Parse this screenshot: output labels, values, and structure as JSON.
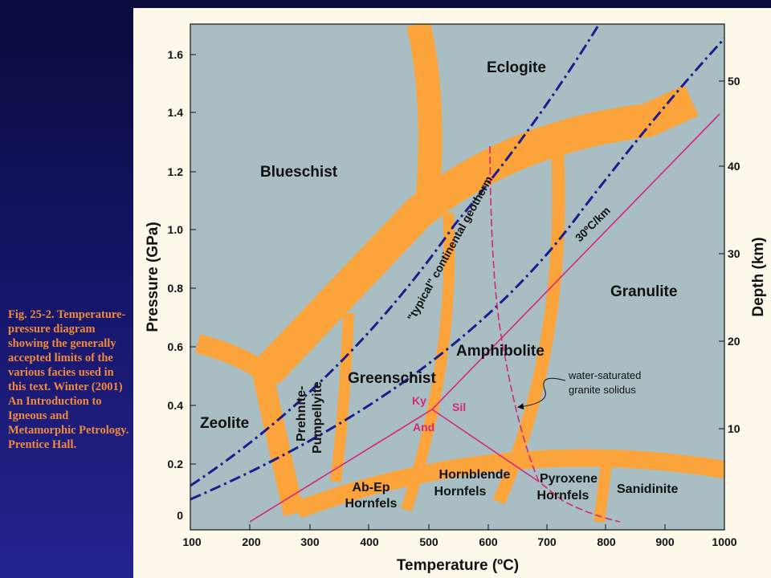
{
  "caption": "Fig. 25-2. Temperature-pressure diagram showing the generally accepted limits of the various facies used in this text. Winter (2001) An Introduction to Igneous and Metamorphic Petrology. Prentice Hall.",
  "colors": {
    "field": "#a8bec3",
    "band": "#fca43c",
    "geotherm": "#1c1c8c",
    "magenta": "#d4287a",
    "background": "#101060",
    "panel": "#fdf8ea",
    "caption": "#f08a3c"
  },
  "axes": {
    "x_label": "Temperature (ºC)",
    "y_label": "Pressure (GPa)",
    "y2_label": "Depth (km)",
    "x_ticks": [
      "100",
      "200",
      "300",
      "400",
      "500",
      "600",
      "700",
      "800",
      "900",
      "1000"
    ],
    "y_ticks": [
      "0",
      "0.2",
      "0.4",
      "0.6",
      "0.8",
      "1.0",
      "1.2",
      "1.4",
      "1.6"
    ],
    "y2_ticks": [
      "10",
      "20",
      "30",
      "40",
      "50"
    ]
  },
  "facies": {
    "eclogite": "Eclogite",
    "blueschist": "Blueschist",
    "granulite": "Granulite",
    "amphibolite": "Amphibolite",
    "greenschist": "Greenschist",
    "zeolite": "Zeolite",
    "prehnite_1": "Prehnite-",
    "prehnite_2": "Pumpellyite",
    "abep_1": "Ab-Ep",
    "abep_2": "Hornfels",
    "hornblende_1": "Hornblende",
    "hornblende_2": "Hornfels",
    "pyroxene_1": "Pyroxene",
    "pyroxene_2": "Hornfels",
    "sanidinite": "Sanidinite"
  },
  "curves": {
    "geotherm_typical": "\"typical\" continental geotherm",
    "geotherm_30": "30ºC/km",
    "solidus_1": "water-saturated",
    "solidus_2": "granite solidus"
  },
  "aluminosilicates": {
    "ky": "Ky",
    "sil": "Sil",
    "and": "And"
  }
}
